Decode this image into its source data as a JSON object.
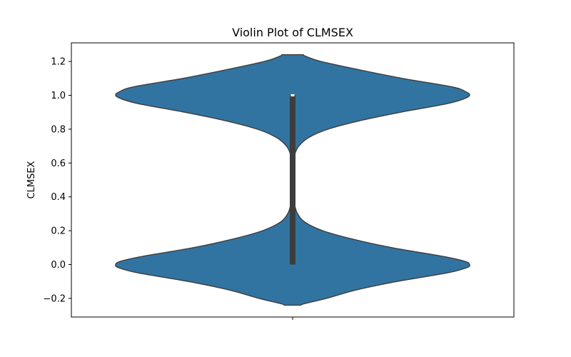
{
  "chart_data": {
    "type": "violin",
    "title": "Violin Plot of CLMSEX",
    "xlabel": "",
    "ylabel": "CLMSEX",
    "ylim": [
      -0.31,
      1.31
    ],
    "yticks": [
      -0.2,
      0.0,
      0.2,
      0.4,
      0.6,
      0.8,
      1.0,
      1.2
    ],
    "ytick_labels": [
      "−0.2",
      "0.0",
      "0.2",
      "0.4",
      "0.6",
      "0.8",
      "1.0",
      "1.2"
    ],
    "grid": false,
    "color": "#3274a1",
    "edge_color": "#3d3d3d",
    "box_color": "#3d3d3d",
    "median_color": "#ffffff",
    "series": [
      {
        "values_summary": {
          "min": 0.0,
          "q1": 0.0,
          "median": 1.0,
          "q3": 1.0,
          "max": 1.0
        },
        "density": [
          {
            "y": -0.24,
            "w": 0.045
          },
          {
            "y": -0.23,
            "w": 0.07
          },
          {
            "y": -0.2,
            "w": 0.19
          },
          {
            "y": -0.15,
            "w": 0.36
          },
          {
            "y": -0.1,
            "w": 0.59
          },
          {
            "y": -0.05,
            "w": 0.87
          },
          {
            "y": -0.02,
            "w": 0.98
          },
          {
            "y": 0.0,
            "w": 1.0
          },
          {
            "y": 0.02,
            "w": 0.97
          },
          {
            "y": 0.05,
            "w": 0.84
          },
          {
            "y": 0.1,
            "w": 0.56
          },
          {
            "y": 0.15,
            "w": 0.34
          },
          {
            "y": 0.2,
            "w": 0.17
          },
          {
            "y": 0.25,
            "w": 0.07
          },
          {
            "y": 0.3,
            "w": 0.028
          },
          {
            "y": 0.35,
            "w": 0.012
          },
          {
            "y": 0.4,
            "w": 0.009
          },
          {
            "y": 0.5,
            "w": 0.008
          },
          {
            "y": 0.6,
            "w": 0.009
          },
          {
            "y": 0.65,
            "w": 0.012
          },
          {
            "y": 0.7,
            "w": 0.035
          },
          {
            "y": 0.75,
            "w": 0.09
          },
          {
            "y": 0.8,
            "w": 0.2
          },
          {
            "y": 0.85,
            "w": 0.38
          },
          {
            "y": 0.9,
            "w": 0.61
          },
          {
            "y": 0.95,
            "w": 0.87
          },
          {
            "y": 0.98,
            "w": 0.97
          },
          {
            "y": 1.0,
            "w": 1.0
          },
          {
            "y": 1.02,
            "w": 0.98
          },
          {
            "y": 1.05,
            "w": 0.9
          },
          {
            "y": 1.1,
            "w": 0.62
          },
          {
            "y": 1.15,
            "w": 0.38
          },
          {
            "y": 1.2,
            "w": 0.16
          },
          {
            "y": 1.23,
            "w": 0.075
          },
          {
            "y": 1.24,
            "w": 0.06
          }
        ]
      }
    ]
  }
}
